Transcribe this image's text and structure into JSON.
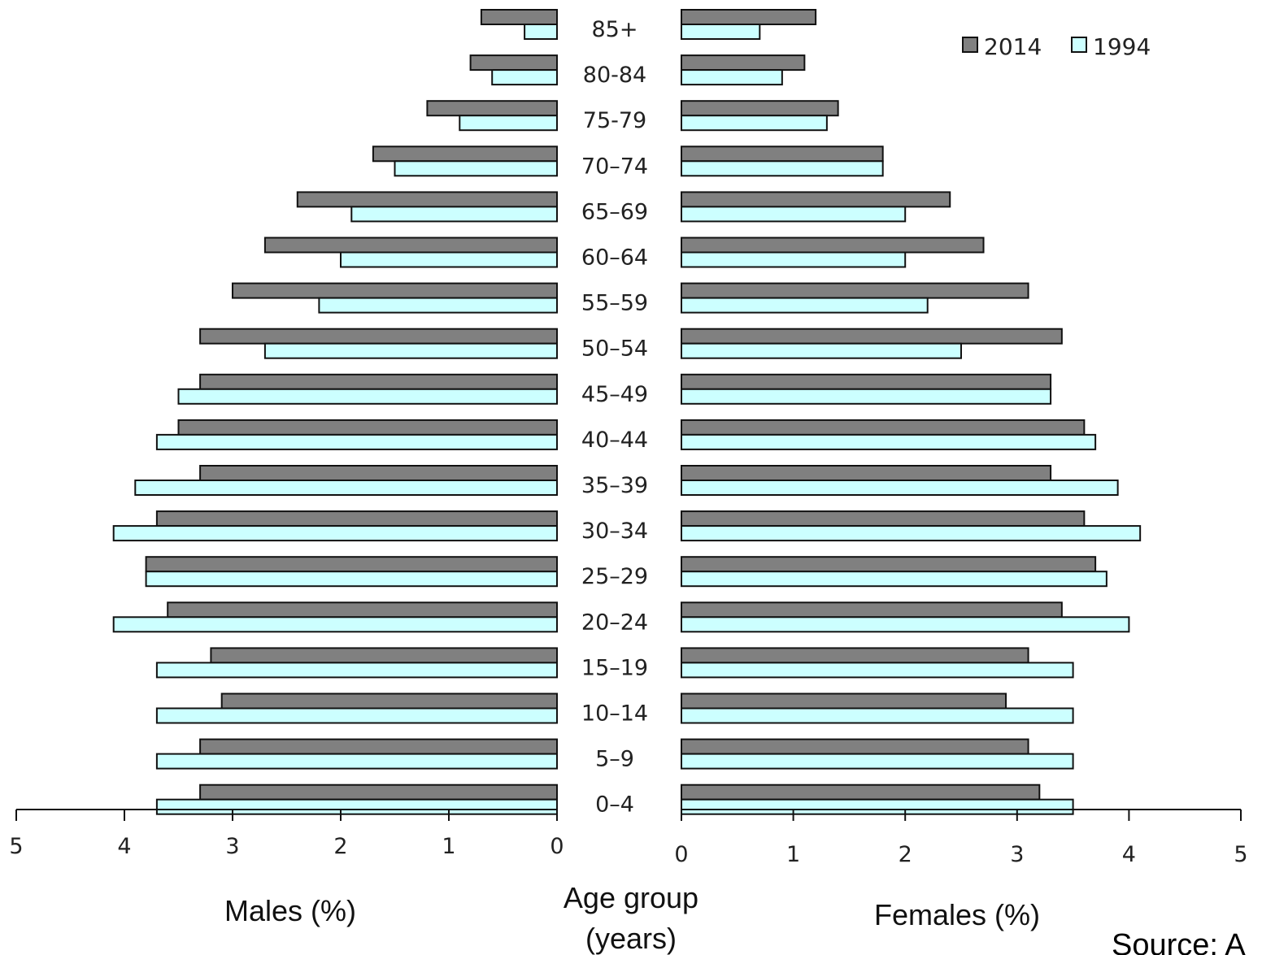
{
  "chart_data": {
    "type": "bar",
    "orientation": "horizontal-population-pyramid",
    "categories": [
      "0–4",
      "5–9",
      "10–14",
      "15–19",
      "20–24",
      "25–29",
      "30–34",
      "35–39",
      "40–44",
      "45–49",
      "50–54",
      "55–59",
      "60–64",
      "65–69",
      "70–74",
      "75-79",
      "80-84",
      "85+"
    ],
    "males": {
      "axis_label": "Males (%)",
      "series": [
        {
          "name": "2014",
          "color": "#808080",
          "values": [
            3.3,
            3.3,
            3.1,
            3.2,
            3.6,
            3.8,
            3.7,
            3.3,
            3.5,
            3.3,
            3.3,
            3.0,
            2.7,
            2.4,
            1.7,
            1.2,
            0.8,
            0.7
          ]
        },
        {
          "name": "1994",
          "color": "#ccffff",
          "values": [
            3.7,
            3.7,
            3.7,
            3.7,
            4.1,
            3.8,
            4.1,
            3.9,
            3.7,
            3.5,
            2.7,
            2.2,
            2.0,
            1.9,
            1.5,
            0.9,
            0.6,
            0.3
          ]
        }
      ]
    },
    "females": {
      "axis_label": "Females (%)",
      "series": [
        {
          "name": "2014",
          "color": "#808080",
          "values": [
            3.2,
            3.1,
            2.9,
            3.1,
            3.4,
            3.7,
            3.6,
            3.3,
            3.6,
            3.3,
            3.4,
            3.1,
            2.7,
            2.4,
            1.8,
            1.4,
            1.1,
            1.2
          ]
        },
        {
          "name": "1994",
          "color": "#ccffff",
          "values": [
            3.5,
            3.5,
            3.5,
            3.5,
            4.0,
            3.8,
            4.1,
            3.9,
            3.7,
            3.3,
            2.5,
            2.2,
            2.0,
            2.0,
            1.8,
            1.3,
            0.9,
            0.7
          ]
        }
      ]
    },
    "center_label": [
      "Age group",
      "(years)"
    ],
    "xlim": [
      0,
      5
    ],
    "ticks": [
      "0",
      "1",
      "2",
      "3",
      "4",
      "5"
    ],
    "legend": {
      "position": "top-right",
      "items": [
        "2014",
        "1994"
      ]
    },
    "grid": false
  },
  "source_text": "Source: A"
}
